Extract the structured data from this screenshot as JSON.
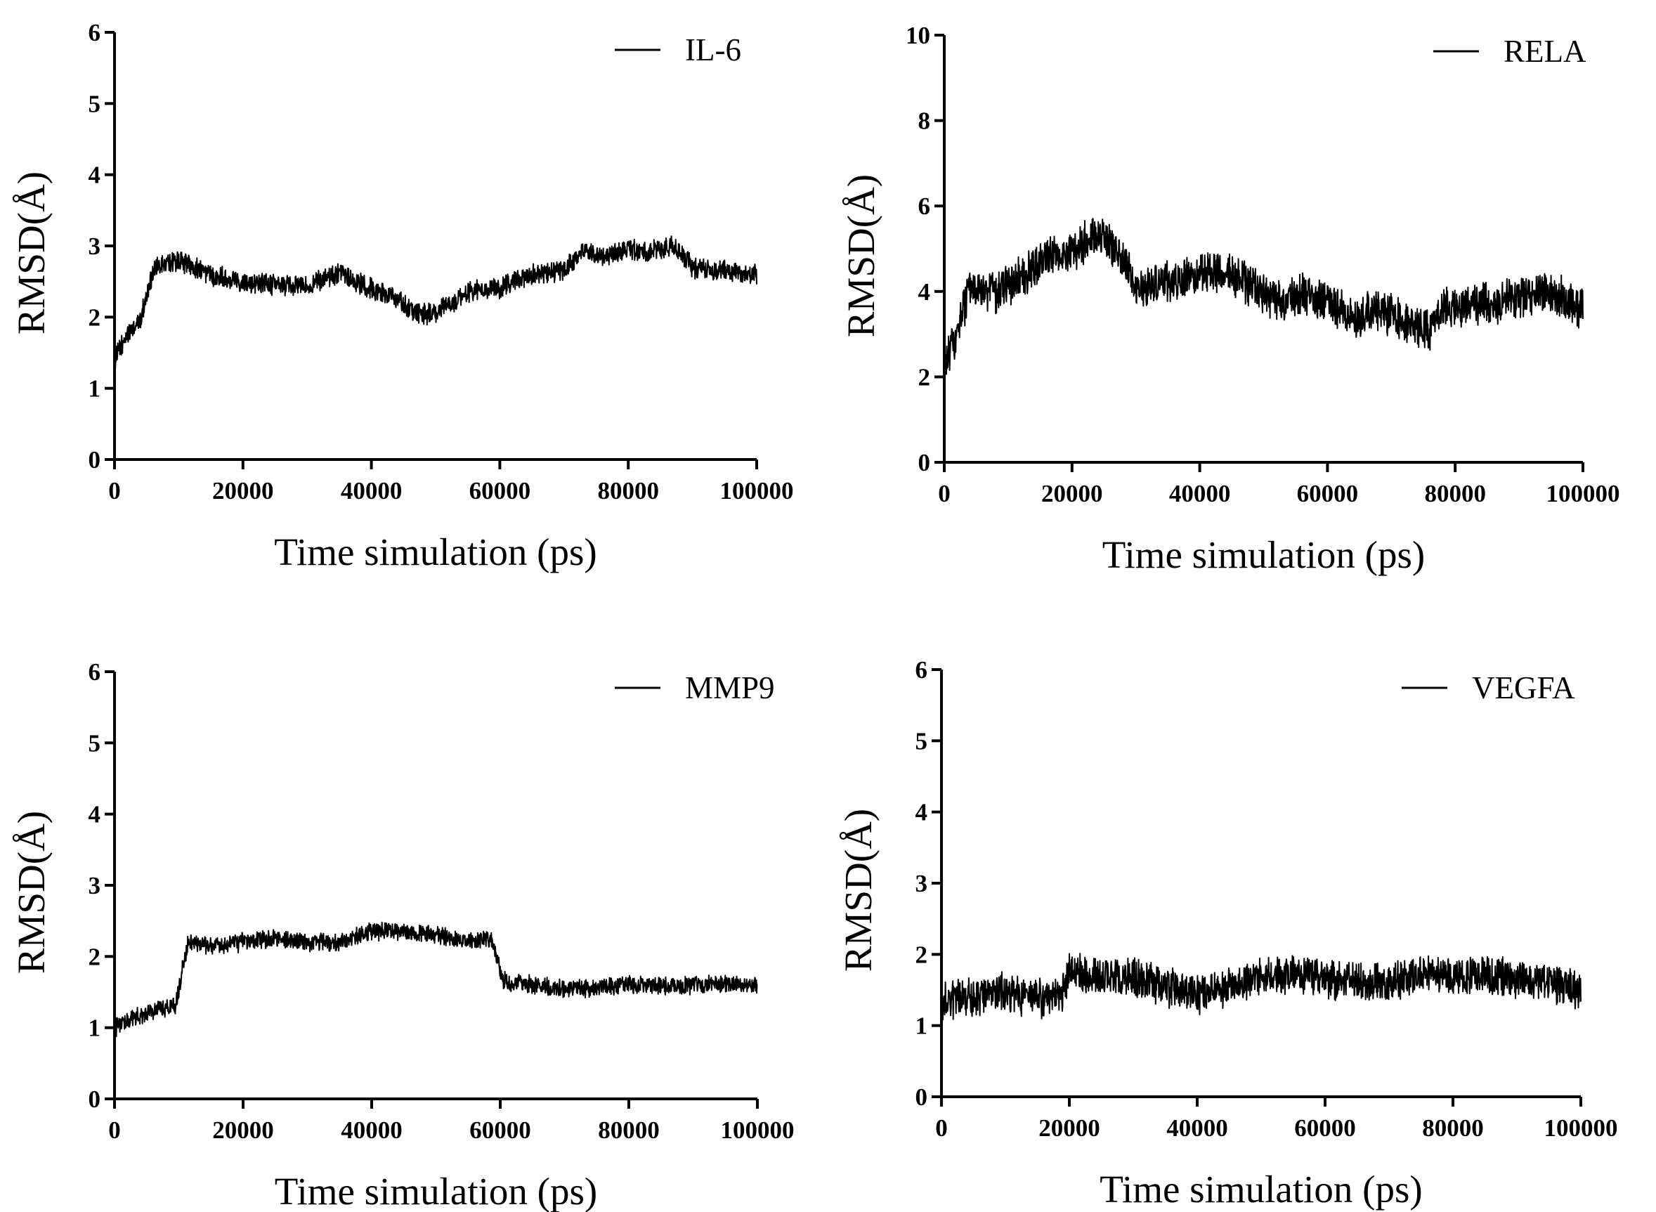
{
  "chart_data": [
    {
      "type": "line",
      "ylabel": "RMSD(Å)",
      "xlabel": "Time simulation (ps)",
      "xlim": [
        0,
        100000
      ],
      "ylim": [
        0,
        6
      ],
      "xticks": [
        "0",
        "20000",
        "40000",
        "60000",
        "80000",
        "100000"
      ],
      "yticks": [
        "0",
        "1",
        "2",
        "3",
        "4",
        "5",
        "6"
      ],
      "legend_position": "top-right",
      "series": [
        {
          "name": "IL-6",
          "color": "#000000",
          "noise": 0.13,
          "x": [
            0,
            2000,
            4000,
            6000,
            8000,
            10000,
            15000,
            20000,
            25000,
            30000,
            35000,
            40000,
            44000,
            47000,
            50000,
            55000,
            60000,
            63000,
            66000,
            70000,
            73000,
            76000,
            80000,
            83000,
            87000,
            90000,
            95000,
            100000
          ],
          "y": [
            1.4,
            1.75,
            1.95,
            2.65,
            2.75,
            2.8,
            2.6,
            2.5,
            2.45,
            2.45,
            2.6,
            2.4,
            2.25,
            2.05,
            2.05,
            2.35,
            2.4,
            2.55,
            2.6,
            2.65,
            2.95,
            2.85,
            2.95,
            2.9,
            3.0,
            2.7,
            2.65,
            2.6
          ]
        }
      ]
    },
    {
      "type": "line",
      "ylabel": "RMSD(Å)",
      "xlabel": "Time simulation (ps)",
      "xlim": [
        0,
        100000
      ],
      "ylim": [
        0,
        10
      ],
      "xticks": [
        "0",
        "20000",
        "40000",
        "60000",
        "80000",
        "100000"
      ],
      "yticks": [
        "0",
        "2",
        "4",
        "6",
        "8",
        "10"
      ],
      "legend_position": "top-right",
      "series": [
        {
          "name": "RELA",
          "color": "#000000",
          "noise": 0.42,
          "x": [
            0,
            2000,
            4000,
            8000,
            12000,
            16000,
            20000,
            24000,
            27000,
            30000,
            35000,
            40000,
            44000,
            48000,
            52000,
            56000,
            60000,
            64000,
            68000,
            72000,
            76000,
            78000,
            82000,
            86000,
            90000,
            95000,
            100000
          ],
          "y": [
            2.2,
            3.0,
            4.1,
            4.0,
            4.3,
            4.8,
            4.9,
            5.4,
            5.0,
            4.1,
            4.2,
            4.4,
            4.5,
            4.1,
            3.8,
            3.9,
            3.8,
            3.4,
            3.6,
            3.3,
            3.1,
            3.6,
            3.7,
            3.7,
            3.9,
            4.0,
            3.6
          ]
        }
      ]
    },
    {
      "type": "line",
      "ylabel": "RMSD(Å)",
      "xlabel": "Time simulation (ps)",
      "xlim": [
        0,
        100000
      ],
      "ylim": [
        0,
        6
      ],
      "xticks": [
        "0",
        "20000",
        "40000",
        "60000",
        "80000",
        "100000"
      ],
      "yticks": [
        "0",
        "1",
        "2",
        "3",
        "4",
        "5",
        "6"
      ],
      "legend_position": "top-right",
      "series": [
        {
          "name": "MMP9",
          "color": "#000000",
          "noise": 0.11,
          "x": [
            0,
            3000,
            6000,
            9500,
            10500,
            11500,
            15000,
            20000,
            25000,
            30000,
            35000,
            40000,
            45000,
            50000,
            55000,
            58500,
            60500,
            65000,
            70000,
            75000,
            80000,
            85000,
            90000,
            95000,
            100000
          ],
          "y": [
            1.0,
            1.15,
            1.25,
            1.3,
            1.8,
            2.2,
            2.15,
            2.2,
            2.25,
            2.2,
            2.2,
            2.35,
            2.35,
            2.3,
            2.2,
            2.25,
            1.65,
            1.6,
            1.55,
            1.55,
            1.6,
            1.6,
            1.6,
            1.62,
            1.6
          ]
        }
      ]
    },
    {
      "type": "line",
      "ylabel": "RMSD(Å)",
      "xlabel": "Time simulation (ps)",
      "xlim": [
        0,
        100000
      ],
      "ylim": [
        0,
        6
      ],
      "xticks": [
        "0",
        "20000",
        "40000",
        "60000",
        "80000",
        "100000"
      ],
      "yticks": [
        "0",
        "1",
        "2",
        "3",
        "4",
        "5",
        "6"
      ],
      "legend_position": "top-right",
      "series": [
        {
          "name": "VEGFA",
          "color": "#000000",
          "noise": 0.24,
          "x": [
            0,
            5000,
            10000,
            15000,
            18500,
            20000,
            25000,
            30000,
            35000,
            40000,
            45000,
            50000,
            55000,
            60000,
            65000,
            70000,
            75000,
            80000,
            85000,
            90000,
            95000,
            100000
          ],
          "y": [
            1.35,
            1.4,
            1.45,
            1.4,
            1.4,
            1.75,
            1.7,
            1.65,
            1.55,
            1.45,
            1.55,
            1.7,
            1.7,
            1.65,
            1.6,
            1.6,
            1.75,
            1.7,
            1.7,
            1.65,
            1.6,
            1.5
          ]
        }
      ]
    }
  ]
}
